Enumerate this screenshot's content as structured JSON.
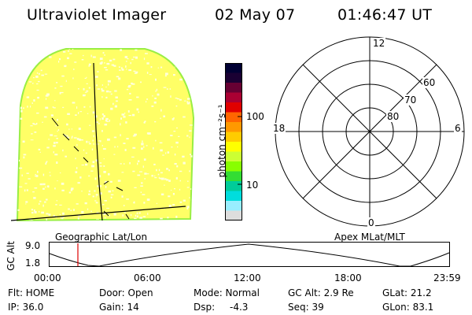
{
  "header": {
    "instrument": "Ultraviolet Imager",
    "date": "02 May 07",
    "time": "01:46:47 UT"
  },
  "image_panel": {
    "projection_label": "Geographic Lat/Lon"
  },
  "colorbar": {
    "unit_label": "photon cm⁻²s⁻¹",
    "ticks": [
      "100",
      "10"
    ],
    "tick_values": [
      100,
      10
    ],
    "colors": [
      "#000033",
      "#1a0033",
      "#660033",
      "#aa0033",
      "#e00000",
      "#ff6600",
      "#ff9900",
      "#ffcc00",
      "#ffff00",
      "#ccff33",
      "#88ff00",
      "#33dd33",
      "#00cc99",
      "#00dddd",
      "#99eeff",
      "#dddddd"
    ]
  },
  "polar_grid": {
    "projection_label": "Apex MLat/MLT",
    "mlt_labels": {
      "top": "12",
      "bottom": "0",
      "left": "18",
      "right": "6"
    },
    "lat_labels": [
      "60",
      "70",
      "80"
    ],
    "lat_values": [
      60,
      70,
      80
    ]
  },
  "altitude_plot": {
    "axis_label": "GC Alt",
    "y_ticks": [
      "9.0",
      "1.8"
    ],
    "y_values": [
      9.0,
      1.8
    ],
    "time_ticks": [
      "00:00",
      "06:00",
      "12:00",
      "18:00",
      "23:59"
    ],
    "current_time_marker": "01:46:47"
  },
  "status": {
    "flt": "Flt: HOME",
    "door": "Door: Open",
    "mode": "Mode: Normal",
    "gc_alt": "GC Alt: 2.9 Re",
    "glat": "GLat: 21.2",
    "ip": "IP: 36.0",
    "gain": "Gain: 14",
    "dsp_label": "Dsp:",
    "dsp_value": "-4.3",
    "seq": "Seq: 39",
    "glon": "GLon: 83.1"
  },
  "colors": {
    "disk_fill": "#ffff66",
    "disk_edge": "#99ee44",
    "disk_speckle": "#ffffdd",
    "marker_red": "#dd0000"
  }
}
